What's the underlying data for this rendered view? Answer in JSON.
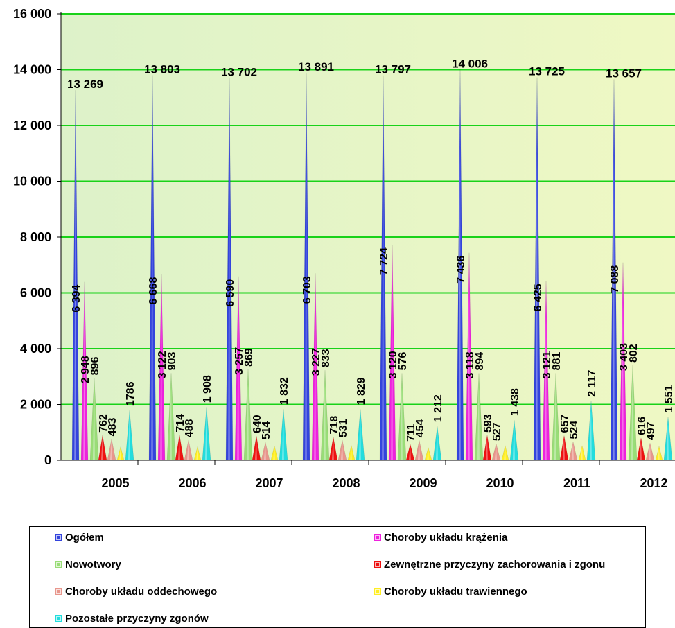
{
  "chart_data": {
    "type": "bar",
    "categories": [
      "2005",
      "2006",
      "2007",
      "2008",
      "2009",
      "2010",
      "2011",
      "2012"
    ],
    "ylim": [
      0,
      16000
    ],
    "yticks": [
      0,
      2000,
      4000,
      6000,
      8000,
      10000,
      12000,
      14000,
      16000
    ],
    "ytick_labels": [
      "0",
      "2 000",
      "4 000",
      "6 000",
      "8 000",
      "10 000",
      "12 000",
      "14 000",
      "16 000"
    ],
    "grid": true,
    "legend_position": "bottom",
    "series": [
      {
        "name": "Ogółem",
        "color": "#3344dd",
        "values": [
          13269,
          13803,
          13702,
          13891,
          13797,
          14006,
          13725,
          13657
        ],
        "labels": [
          "13 269",
          "13 803",
          "13 702",
          "13 891",
          "13 797",
          "14 006",
          "13 725",
          "13 657"
        ],
        "inner_values": [
          6394,
          6668,
          6590,
          6703,
          7724,
          7436,
          6425,
          7088
        ],
        "inner_labels": [
          "6 394",
          "6 668",
          "6 590",
          "6 703",
          "7 724",
          "7 436",
          "6 425",
          "7 088"
        ]
      },
      {
        "name": "Choroby układu krążenia",
        "color": "#ee22dd",
        "values": [
          6394,
          6668,
          6590,
          6703,
          7724,
          7436,
          6425,
          7088
        ],
        "labels": [
          "2 948",
          "3 122",
          "3 257",
          "3 227",
          "3 120",
          "3 118",
          "3 121",
          "3 403"
        ]
      },
      {
        "name": "Nowotwory",
        "color": "#99dd77",
        "values": [
          2948,
          3122,
          3257,
          3227,
          3120,
          3118,
          3121,
          3403
        ],
        "labels": [
          "896",
          "903",
          "869",
          "833",
          "576",
          "894",
          "881",
          "802"
        ]
      },
      {
        "name": "Zewnętrzne przyczyny zachorowania i zgonu",
        "color": "#ee1111",
        "values": [
          896,
          903,
          869,
          833,
          576,
          894,
          881,
          802
        ],
        "labels": [
          "762",
          "714",
          "640",
          "718",
          "711",
          "593",
          "657",
          "616"
        ]
      },
      {
        "name": "Choroby układu oddechowego",
        "color": "#e8968c",
        "values": [
          762,
          714,
          640,
          718,
          711,
          593,
          657,
          616
        ],
        "labels": [
          "483",
          "488",
          "514",
          "531",
          "454",
          "527",
          "524",
          "497"
        ]
      },
      {
        "name": "Choroby układu trawiennego",
        "color": "#ffee22",
        "values": [
          483,
          488,
          514,
          531,
          454,
          527,
          524,
          497
        ],
        "labels": []
      },
      {
        "name": "Pozostałe przyczyny zgonów",
        "color": "#22dddd",
        "values": [
          1786,
          1908,
          1832,
          1829,
          1212,
          1438,
          2117,
          1551
        ],
        "labels": [
          "1786",
          "1 908",
          "1 832",
          "1 829",
          "1 212",
          "1 438",
          "2 117",
          "1 551"
        ]
      }
    ]
  },
  "legend": {
    "items": [
      {
        "label": "Ogółem",
        "color": "#3344dd"
      },
      {
        "label": "Choroby układu krążenia",
        "color": "#ee22dd"
      },
      {
        "label": "Nowotwory",
        "color": "#99dd77"
      },
      {
        "label": "Zewnętrzne przyczyny zachorowania i zgonu",
        "color": "#ee1111"
      },
      {
        "label": "Choroby układu oddechowego",
        "color": "#e8968c"
      },
      {
        "label": "Choroby układu trawiennego",
        "color": "#ffee22"
      },
      {
        "label": "Pozostałe przyczyny zgonów",
        "color": "#22dddd"
      }
    ]
  }
}
